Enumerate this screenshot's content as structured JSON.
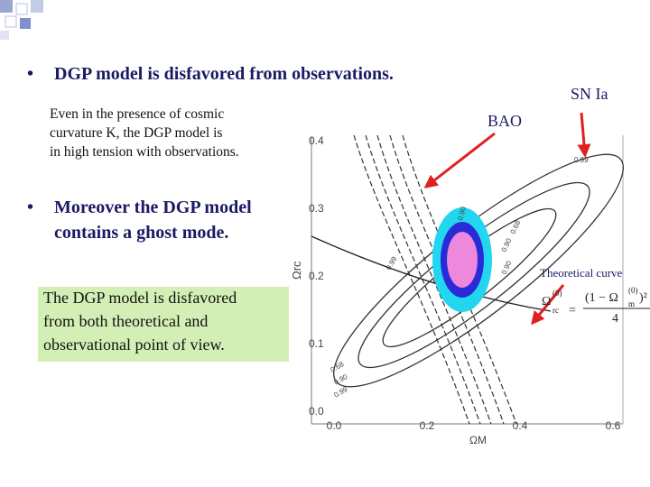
{
  "slide": {
    "bullets": [
      {
        "lines": [
          "DGP model is disfavored from observations."
        ]
      },
      {
        "lines": [
          "Moreover the DGP model",
          "contains a ghost mode."
        ]
      }
    ],
    "note": {
      "lines": [
        "Even in the presence of cosmic",
        "curvature K, the DGP model is",
        "in high tension with observations."
      ]
    },
    "callout": {
      "lines": [
        "The DGP model is disfavored",
        "from both theoretical and",
        "observational point of view."
      ]
    },
    "figure": {
      "bao_label": "BAO",
      "sn_label": "SN Ia",
      "theory_label": "Theoretical curve",
      "x_axis_label": "ΩM",
      "y_axis_label": "Ωrc",
      "xticks": [
        "0.0",
        "0.2",
        "0.4",
        "0.6"
      ],
      "yticks": [
        "0.4",
        "0.3",
        "0.2",
        "0.1",
        "0.0"
      ],
      "contour_labels": [
        "0.99",
        "0.68",
        "0.90",
        "0.99",
        "0.90",
        "0.68",
        "0.90",
        "0.99",
        "0.90"
      ],
      "formula": {
        "lhs": "Ω",
        "lhs_sup": "(0)",
        "lhs_sub": "rc",
        "equals": "=",
        "numerator": "(1 − Ω",
        "num_sup": "(0)",
        "num_sub": "m",
        "num_close": ")²",
        "denominator": "4"
      }
    }
  }
}
